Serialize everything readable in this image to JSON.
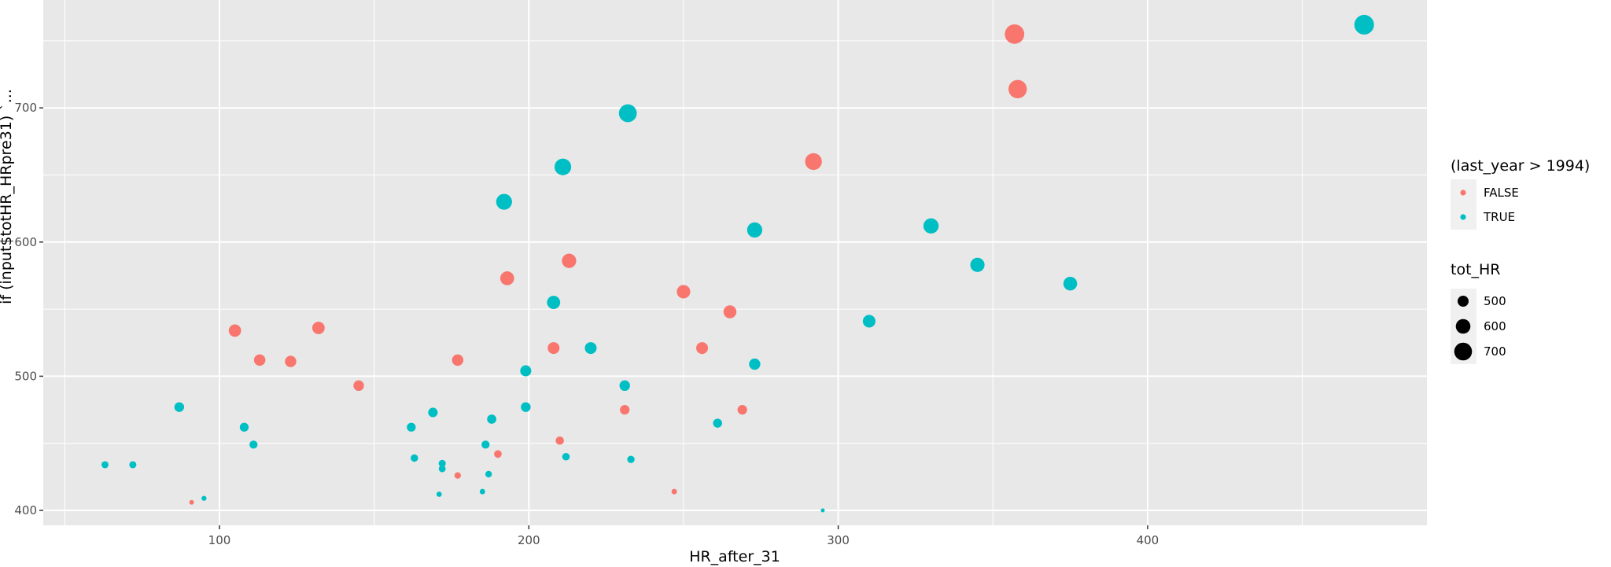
{
  "chart_data": {
    "type": "scatter",
    "title": "",
    "xlabel": "HR_after_31",
    "ylabel": "if (input$totHR_HRpre31) `...",
    "xlim": [
      45,
      493
    ],
    "ylim": [
      384,
      781
    ],
    "x_ticks": [
      100,
      200,
      300,
      400
    ],
    "x_minor": [
      50,
      150,
      250,
      350,
      450
    ],
    "y_ticks": [
      400,
      500,
      600,
      700
    ],
    "y_minor": [
      450,
      550,
      650,
      750
    ],
    "grid": true,
    "legend_position": "right",
    "color_legend": {
      "title": "(last_year > 1994)",
      "entries": [
        {
          "label": "FALSE",
          "color": "#F8766D"
        },
        {
          "label": "TRUE",
          "color": "#00BFC4"
        }
      ]
    },
    "size_legend": {
      "title": "tot_HR",
      "entries": [
        {
          "label": "500",
          "value": 500
        },
        {
          "label": "600",
          "value": 600
        },
        {
          "label": "700",
          "value": 700
        }
      ]
    },
    "series": [
      {
        "name": "FALSE",
        "color": "#F8766D",
        "points": [
          {
            "x": 91,
            "y": 406,
            "size": 406
          },
          {
            "x": 105,
            "y": 534,
            "size": 534
          },
          {
            "x": 113,
            "y": 512,
            "size": 512
          },
          {
            "x": 123,
            "y": 511,
            "size": 511
          },
          {
            "x": 132,
            "y": 536,
            "size": 536
          },
          {
            "x": 145,
            "y": 493,
            "size": 493
          },
          {
            "x": 177,
            "y": 512,
            "size": 512
          },
          {
            "x": 177,
            "y": 426,
            "size": 426
          },
          {
            "x": 190,
            "y": 442,
            "size": 442
          },
          {
            "x": 193,
            "y": 573,
            "size": 573
          },
          {
            "x": 208,
            "y": 521,
            "size": 521
          },
          {
            "x": 210,
            "y": 452,
            "size": 452
          },
          {
            "x": 213,
            "y": 586,
            "size": 586
          },
          {
            "x": 231,
            "y": 475,
            "size": 475
          },
          {
            "x": 247,
            "y": 414,
            "size": 414
          },
          {
            "x": 250,
            "y": 563,
            "size": 563
          },
          {
            "x": 256,
            "y": 521,
            "size": 521
          },
          {
            "x": 265,
            "y": 548,
            "size": 548
          },
          {
            "x": 269,
            "y": 475,
            "size": 475
          },
          {
            "x": 292,
            "y": 660,
            "size": 660
          },
          {
            "x": 357,
            "y": 755,
            "size": 755
          },
          {
            "x": 358,
            "y": 714,
            "size": 714
          }
        ]
      },
      {
        "name": "TRUE",
        "color": "#00BFC4",
        "points": [
          {
            "x": 63,
            "y": 434,
            "size": 434
          },
          {
            "x": 72,
            "y": 434,
            "size": 434
          },
          {
            "x": 87,
            "y": 477,
            "size": 477
          },
          {
            "x": 95,
            "y": 409,
            "size": 409
          },
          {
            "x": 108,
            "y": 462,
            "size": 462
          },
          {
            "x": 111,
            "y": 449,
            "size": 449
          },
          {
            "x": 162,
            "y": 462,
            "size": 462
          },
          {
            "x": 163,
            "y": 439,
            "size": 439
          },
          {
            "x": 169,
            "y": 473,
            "size": 473
          },
          {
            "x": 171,
            "y": 412,
            "size": 412
          },
          {
            "x": 172,
            "y": 435,
            "size": 435
          },
          {
            "x": 172,
            "y": 431,
            "size": 431
          },
          {
            "x": 185,
            "y": 414,
            "size": 414
          },
          {
            "x": 186,
            "y": 449,
            "size": 449
          },
          {
            "x": 187,
            "y": 427,
            "size": 427
          },
          {
            "x": 188,
            "y": 468,
            "size": 468
          },
          {
            "x": 192,
            "y": 630,
            "size": 630
          },
          {
            "x": 199,
            "y": 477,
            "size": 477
          },
          {
            "x": 199,
            "y": 504,
            "size": 504
          },
          {
            "x": 208,
            "y": 555,
            "size": 555
          },
          {
            "x": 211,
            "y": 656,
            "size": 656
          },
          {
            "x": 212,
            "y": 440,
            "size": 440
          },
          {
            "x": 220,
            "y": 521,
            "size": 521
          },
          {
            "x": 231,
            "y": 493,
            "size": 493
          },
          {
            "x": 232,
            "y": 696,
            "size": 696
          },
          {
            "x": 233,
            "y": 438,
            "size": 438
          },
          {
            "x": 261,
            "y": 465,
            "size": 465
          },
          {
            "x": 273,
            "y": 609,
            "size": 609
          },
          {
            "x": 273,
            "y": 509,
            "size": 509
          },
          {
            "x": 295,
            "y": 400,
            "size": 400
          },
          {
            "x": 310,
            "y": 541,
            "size": 541
          },
          {
            "x": 330,
            "y": 612,
            "size": 612
          },
          {
            "x": 345,
            "y": 583,
            "size": 583
          },
          {
            "x": 375,
            "y": 569,
            "size": 569
          },
          {
            "x": 470,
            "y": 762,
            "size": 762
          }
        ]
      }
    ]
  },
  "axes": {
    "x_title": "HR_after_31",
    "y_title": "if (input$totHR_HRpre31) `...",
    "x_tick_labels": [
      "100",
      "200",
      "300",
      "400"
    ],
    "y_tick_labels": [
      "400",
      "500",
      "600",
      "700"
    ]
  },
  "legend": {
    "color_title": "(last_year > 1994)",
    "color_labels": [
      "FALSE",
      "TRUE"
    ],
    "size_title": "tot_HR",
    "size_labels": [
      "500",
      "600",
      "700"
    ]
  },
  "colors": {
    "panel_bg": "#E8E8E8",
    "grid_major": "#FFFFFF",
    "false": "#F8766D",
    "true": "#00BFC4",
    "legend_key_bg": "#F0F0F0"
  }
}
